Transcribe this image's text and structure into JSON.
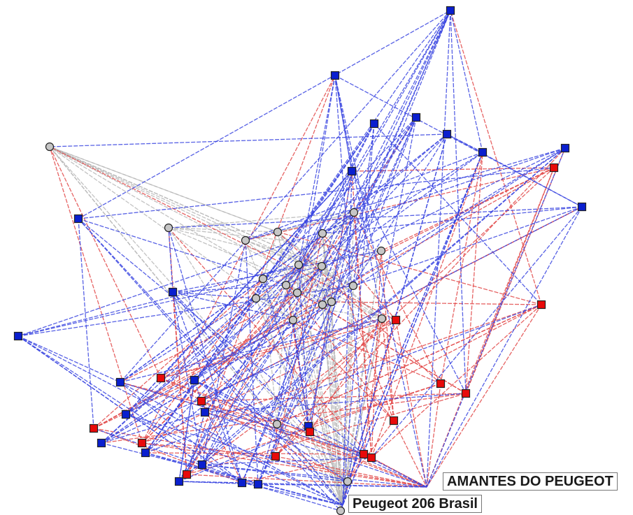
{
  "legend_colors": {
    "blue_node": "#0a1fcf",
    "red_node": "#e80a0a",
    "gray_node": "#c6c6c6",
    "blue_edge": "#3a45e0",
    "red_edge": "#e24848",
    "gray_edge": "#b9b9b9"
  },
  "labels": {
    "amantes": "AMANTES DO PEUGEOT",
    "peugeot206": "Peugeot 206 Brasil"
  }
}
